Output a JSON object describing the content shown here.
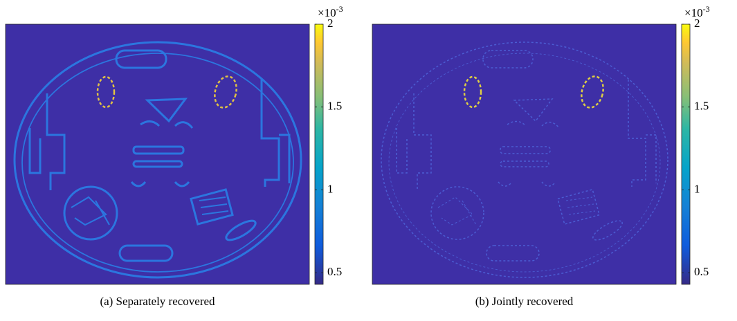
{
  "panels": [
    {
      "caption": "(a) Separately recovered",
      "colorbar": {
        "clim": [
          0.43,
          2
        ],
        "ticks": [
          0.5,
          1,
          1.5,
          2
        ],
        "scale_base": "×10",
        "scale_exponent": "-3"
      }
    },
    {
      "caption": "(b) Jointly recovered",
      "colorbar": {
        "clim": [
          0.43,
          2
        ],
        "ticks": [
          0.5,
          1,
          1.5,
          2
        ],
        "scale_base": "×10",
        "scale_exponent": "-3"
      }
    }
  ]
}
